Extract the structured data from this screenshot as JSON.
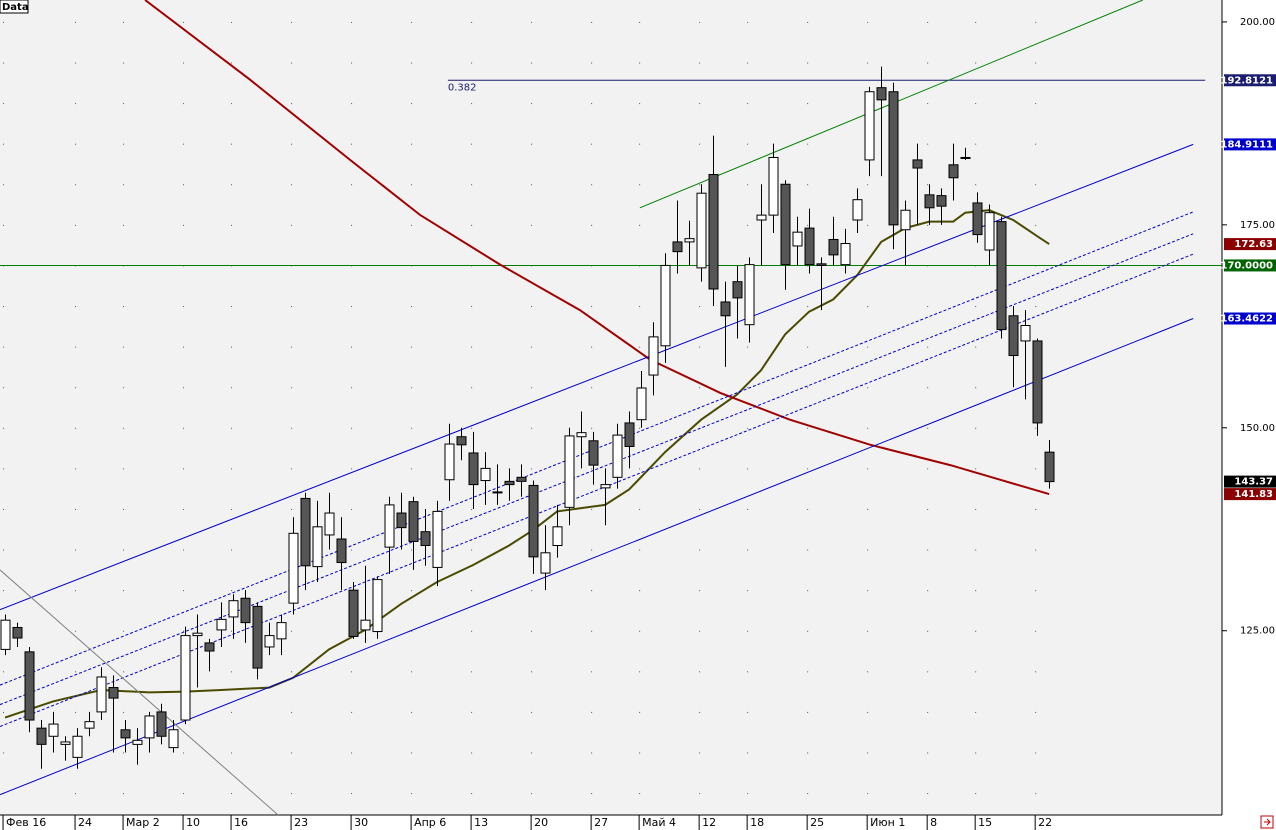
{
  "chart_data": {
    "type": "candlestick",
    "title": "Data",
    "categories": [
      "Фев 16",
      null,
      null,
      null,
      null,
      null,
      "24",
      null,
      null,
      null,
      "Мар 2",
      null,
      null,
      null,
      null,
      "10",
      null,
      null,
      null,
      "16",
      null,
      null,
      null,
      null,
      "23",
      null,
      null,
      null,
      null,
      "30",
      null,
      null,
      null,
      null,
      "Апр 6",
      null,
      null,
      null,
      null,
      "13",
      null,
      null,
      null,
      null,
      "20",
      null,
      null,
      null,
      null,
      "27",
      null,
      null,
      null,
      "Май 4",
      null,
      null,
      null,
      null,
      "12",
      null,
      null,
      null,
      "18",
      null,
      null,
      null,
      null,
      "25",
      null,
      null,
      null,
      null,
      "Июн 1",
      null,
      null,
      null,
      null,
      "8",
      null,
      null,
      null,
      "15",
      null,
      null,
      null,
      null,
      "22",
      null
    ],
    "open": [
      122.7,
      125.4,
      122.4,
      113,
      112,
      111,
      109.4,
      113,
      115,
      118,
      112.8,
      111,
      111.8,
      115,
      110.6,
      114,
      124.4,
      123.5,
      125.1,
      126.7,
      129,
      128,
      123,
      124,
      128.4,
      141.3,
      132.9,
      136.8,
      136.3,
      130,
      125.1,
      124.9,
      135.3,
      139.5,
      140.9,
      137.2,
      132.8,
      143.6,
      148.9,
      146.9,
      143.5,
      142.1,
      143.4,
      143.9,
      142.9,
      132.1,
      135.5,
      140.2,
      148.9,
      148.4,
      142.6,
      143.9,
      150.6,
      151,
      156.5,
      160.1,
      172.9,
      172.9,
      169.7,
      181.2,
      165.5,
      168,
      162.7,
      175.6,
      176.2,
      180,
      172.4,
      174.6,
      170.2,
      173.2,
      170.1,
      175.6,
      183,
      191.9,
      191.4,
      174.4,
      183,
      178.7,
      178.6,
      182.4,
      183.3,
      177.7,
      171.9,
      175.4,
      163.8,
      160.7,
      160.7,
      147
    ],
    "high": [
      127,
      126,
      123,
      114,
      115,
      112,
      113,
      115,
      120.5,
      119.5,
      114,
      113,
      115,
      116,
      114,
      125.5,
      127,
      124,
      128.5,
      129.5,
      130,
      128.5,
      126,
      127,
      139,
      142,
      141,
      142,
      139,
      131,
      133,
      131.7,
      141.5,
      142,
      141.5,
      140,
      141,
      150.5,
      150,
      149.5,
      147,
      145.5,
      145,
      145.5,
      143.5,
      138,
      140.5,
      150,
      152,
      149.5,
      145,
      150.5,
      152,
      157,
      163,
      171.5,
      178,
      175.5,
      180,
      186,
      168,
      170,
      171,
      180,
      185,
      180.5,
      176,
      177,
      171,
      176,
      174.5,
      179.5,
      192,
      194.5,
      192.5,
      178,
      185,
      180,
      179.5,
      185,
      184.5,
      179,
      177.5,
      176,
      165,
      164.5,
      161,
      148.5
    ],
    "low": [
      122,
      123,
      112.5,
      108,
      110,
      109,
      108,
      112,
      114,
      110,
      110,
      108.5,
      110,
      111,
      110,
      113.5,
      118,
      120,
      123,
      124,
      123.5,
      119,
      122,
      122,
      127,
      130,
      131,
      135,
      130,
      124,
      123.5,
      124,
      132,
      135,
      132.5,
      133,
      130.5,
      141,
      146,
      140,
      140.5,
      140.5,
      141,
      141.5,
      132,
      130,
      134,
      138,
      145,
      143,
      138,
      142.5,
      145,
      150,
      154,
      158,
      169,
      170,
      168,
      165,
      157.5,
      161,
      160.5,
      170,
      174,
      167,
      170,
      169,
      164.5,
      170,
      169,
      174,
      181,
      181,
      172,
      170,
      175,
      175,
      175,
      178,
      183,
      172.8,
      170,
      161,
      155,
      153.5,
      149,
      142.5
    ],
    "close": [
      126.3,
      124.1,
      114,
      111,
      113.5,
      111.3,
      112,
      113.8,
      119.3,
      116.7,
      111.8,
      111.5,
      114.5,
      112,
      112.8,
      124.4,
      124.7,
      122.5,
      126.4,
      128.7,
      126,
      120.4,
      124.4,
      126,
      137,
      133,
      137.8,
      139.5,
      133.4,
      124.3,
      126.3,
      131.3,
      140.5,
      137.7,
      136,
      135.5,
      139.7,
      148,
      147.9,
      143,
      145,
      142,
      143,
      143.4,
      134.1,
      134.6,
      137.8,
      149,
      149.4,
      145.4,
      143,
      149.1,
      147.7,
      154.9,
      161.2,
      170,
      171.7,
      173.3,
      178.9,
      167.1,
      163.8,
      166,
      170.1,
      176.2,
      183.3,
      170.1,
      174.1,
      170.1,
      170,
      171.3,
      172.7,
      178.1,
      191.4,
      190.4,
      175,
      176.8,
      182,
      177.1,
      177.3,
      180.8,
      183.2,
      173.8,
      176.5,
      162.1,
      158.9,
      162.6,
      150.6,
      143.37
    ],
    "xlim": [
      -0.42,
      101.4
    ],
    "ylim": [
      102.3,
      202.7
    ],
    "yticks": [
      {
        "value": 125,
        "label": "125.00"
      },
      {
        "value": 150,
        "label": "150.00"
      },
      {
        "value": 175,
        "label": "175.00"
      },
      {
        "value": 200,
        "label": "200.00"
      }
    ],
    "grid": true,
    "price_labels": [
      {
        "value": 192.8121,
        "color": "#1c1c70"
      },
      {
        "value": 184.9111,
        "color": "#0000cc"
      },
      {
        "value": 172.63,
        "color": "#8b0000"
      },
      {
        "value": 170,
        "label": "170.0000",
        "color": "#006400"
      },
      {
        "value": 163.4622,
        "color": "#0000cc"
      },
      {
        "value": 143.37,
        "color": "#000000"
      },
      {
        "value": 141.83,
        "color": "#8b0000"
      }
    ],
    "overlays": [
      {
        "color": "#4b4b00",
        "width": 2,
        "x": [
          0,
          4,
          8,
          12,
          15,
          18,
          22,
          24,
          27,
          30,
          33,
          36,
          39,
          42,
          44,
          46,
          50,
          52,
          55,
          58,
          61,
          63,
          65,
          67,
          69,
          71,
          73,
          75,
          77,
          79,
          80,
          82,
          84,
          86,
          87
        ],
        "values": [
          114.3,
          116.3,
          117.7,
          117.4,
          117.5,
          117.7,
          118,
          119.2,
          122.7,
          125.1,
          128.3,
          131,
          133.1,
          135.5,
          137.4,
          139.7,
          140.5,
          142.4,
          147,
          151,
          154.1,
          157.1,
          161.5,
          164.3,
          165.8,
          168.8,
          172.9,
          174.6,
          175.4,
          175.4,
          176.5,
          176.8,
          175.6,
          173.6,
          172.63
        ]
      },
      {
        "color": "#a00000",
        "width": 2,
        "x": [
          11.67,
          20.4,
          28.75,
          34.6,
          41.25,
          47.9,
          53.75,
          59.6,
          65.4,
          72.1,
          78.75,
          82.9,
          87
        ],
        "values": [
          202.7,
          192.9,
          183,
          176.2,
          170.1,
          164.5,
          158.4,
          154.3,
          151,
          147.9,
          145.4,
          143.6,
          141.83
        ]
      },
      {
        "color": "#0000cc",
        "width": 1,
        "x": [
          -0.42,
          99
        ],
        "values": [
          127.6,
          184.9111
        ]
      },
      {
        "color": "#0000cc",
        "width": 1,
        "x": [
          -0.42,
          99
        ],
        "values": [
          104.8,
          163.4622
        ]
      },
      {
        "color": "#0000cc",
        "width": 1,
        "dashed": true,
        "x": [
          -0.42,
          99
        ],
        "values": [
          118.3,
          176.6
        ]
      },
      {
        "color": "#0000cc",
        "width": 1,
        "dashed": true,
        "x": [
          -0.42,
          99
        ],
        "values": [
          115.9,
          173.9
        ]
      },
      {
        "color": "#0000cc",
        "width": 1,
        "dashed": true,
        "x": [
          -0.42,
          99
        ],
        "values": [
          113.2,
          171.4
        ]
      },
      {
        "color": "#008000",
        "width": 1,
        "x": [
          52.9,
          94.8
        ],
        "values": [
          177.1,
          202.7
        ]
      },
      {
        "color": "#808080",
        "width": 1,
        "x": [
          -0.42,
          22.75
        ],
        "values": [
          132.5,
          102.3
        ]
      }
    ],
    "hlines": [
      {
        "value": 170,
        "color": "#008000",
        "x": [
          -0.42,
          101.4
        ]
      },
      {
        "value": 192.8121,
        "color": "#1c1c70",
        "x": [
          36.9,
          100
        ],
        "label": "0.382"
      }
    ]
  }
}
